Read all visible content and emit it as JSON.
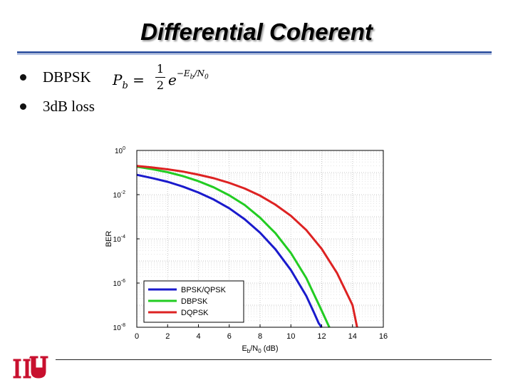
{
  "slide": {
    "title": "Differential Coherent",
    "bullets": [
      "DBPSK",
      "3dB loss"
    ],
    "formula": {
      "lhs": "P",
      "lhs_sub": "b",
      "equals": "=",
      "num": "1",
      "den": "2",
      "base": "e",
      "exponent": "−E",
      "exp_sub": "b",
      "exp_rest": "/N",
      "exp_sub2": "0"
    },
    "logo_name": "UH"
  },
  "chart_data": {
    "type": "line",
    "xlabel": "E",
    "xlabel_sub1": "b",
    "xlabel_mid": "/N",
    "xlabel_sub2": "0",
    "xlabel_unit": " (dB)",
    "ylabel": "BER",
    "xlim": [
      0,
      16
    ],
    "ylim_log10": [
      -8,
      0
    ],
    "y_scale": "log",
    "x_ticks": [
      "0",
      "2",
      "4",
      "6",
      "8",
      "10",
      "12",
      "14",
      "16"
    ],
    "y_ticks": [
      {
        "base": "10",
        "exp": "0"
      },
      {
        "base": "10",
        "exp": "-2"
      },
      {
        "base": "10",
        "exp": "-4"
      },
      {
        "base": "10",
        "exp": "-6"
      },
      {
        "base": "10",
        "exp": "-8"
      }
    ],
    "grid": true,
    "legend_position": "bottom-left",
    "series": [
      {
        "name": "BPSK/QPSK",
        "color": "#1a1acc",
        "x": [
          0,
          1,
          2,
          3,
          4,
          5,
          6,
          7,
          8,
          9,
          10,
          11,
          11.5,
          11.8,
          12
        ],
        "y": [
          0.079,
          0.056,
          0.038,
          0.023,
          0.0125,
          0.006,
          0.0024,
          0.00077,
          0.00019,
          3.36e-05,
          3.87e-06,
          2.61e-07,
          4.58e-08,
          1.55e-08,
          9.8e-09
        ]
      },
      {
        "name": "DBPSK",
        "color": "#22cc22",
        "x": [
          0,
          1,
          2,
          3,
          4,
          5,
          6,
          7,
          8,
          9,
          10,
          11,
          12,
          12.3,
          12.5
        ],
        "y": [
          0.184,
          0.142,
          0.104,
          0.0684,
          0.0407,
          0.0214,
          0.0093,
          0.0034,
          0.00091,
          0.00018,
          2.28e-05,
          1.68e-06,
          5.66e-08,
          1.97e-08,
          9.8e-09
        ]
      },
      {
        "name": "DQPSK",
        "color": "#dd2222",
        "x": [
          0,
          1,
          2,
          3,
          4,
          5,
          6,
          7,
          8,
          9,
          10,
          11,
          12,
          13,
          14,
          14.3
        ],
        "y": [
          0.2,
          0.17,
          0.14,
          0.11,
          0.08,
          0.055,
          0.034,
          0.019,
          0.009,
          0.0035,
          0.0011,
          0.00025,
          3.5e-05,
          2.8e-06,
          1e-07,
          1e-08
        ]
      }
    ]
  }
}
